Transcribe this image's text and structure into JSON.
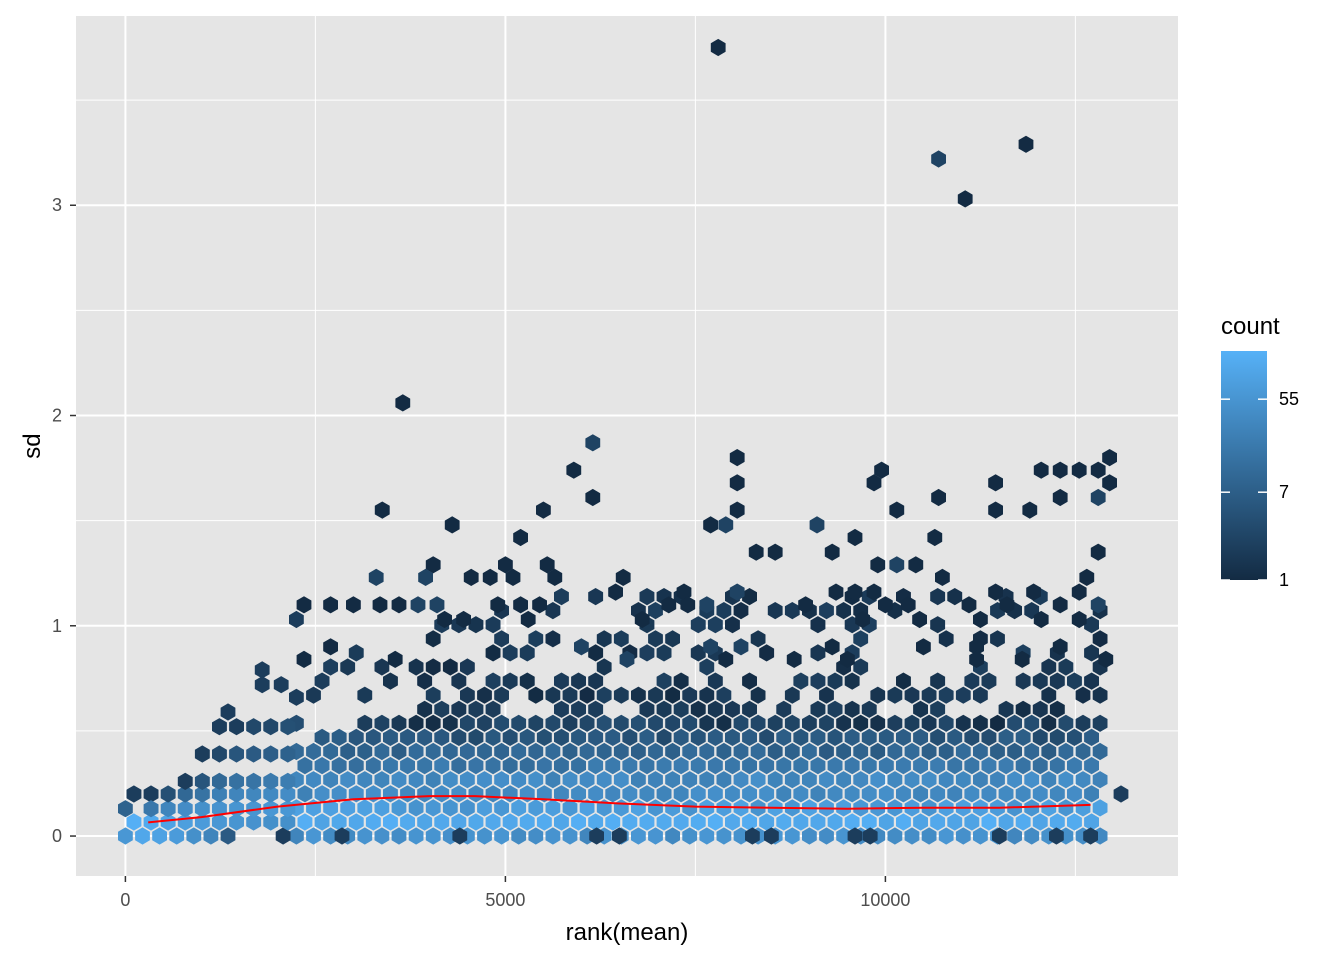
{
  "chart_data": {
    "type": "hexbin",
    "xlabel": "rank(mean)",
    "ylabel": "sd",
    "xlim": [
      -650,
      13850
    ],
    "ylim": [
      -0.19,
      3.9
    ],
    "x_ticks": [
      {
        "value": 0,
        "label": "0"
      },
      {
        "value": 5000,
        "label": "5000"
      },
      {
        "value": 10000,
        "label": "10000"
      }
    ],
    "y_ticks": [
      {
        "value": 0,
        "label": "0"
      },
      {
        "value": 1,
        "label": "1"
      },
      {
        "value": 2,
        "label": "2"
      },
      {
        "value": 3,
        "label": "3"
      }
    ],
    "grid": true,
    "background": "#e5e5e5",
    "gridline_color": "#ffffff",
    "legend": {
      "title": "count",
      "placement": "right",
      "scale": "log",
      "low_color": "#132b43",
      "high_color": "#56b1f7",
      "labels": [
        {
          "value": 1,
          "label": "1"
        },
        {
          "value": 7,
          "label": "7"
        },
        {
          "value": 55,
          "label": "55"
        }
      ],
      "max_count": 160
    },
    "hex_size": {
      "dx": 225,
      "dy": 0.1
    },
    "hexes": [
      [
        0,
        0,
        60
      ],
      [
        225,
        0,
        110
      ],
      [
        450,
        0,
        90
      ],
      [
        675,
        0,
        70
      ],
      [
        900,
        0,
        45
      ],
      [
        1125,
        0,
        30
      ],
      [
        1350,
        0,
        6
      ],
      [
        2075,
        0,
        2
      ],
      [
        2850,
        0,
        2
      ],
      [
        4400,
        0,
        2
      ],
      [
        6200,
        0,
        2
      ],
      [
        6500,
        0,
        2
      ],
      [
        8250,
        0,
        2
      ],
      [
        8500,
        0,
        2
      ],
      [
        9600,
        0,
        2
      ],
      [
        9800,
        0,
        2
      ],
      [
        11500,
        0,
        2
      ],
      [
        12250,
        0,
        2
      ],
      [
        12700,
        0,
        2
      ],
      [
        0,
        0.13,
        8
      ],
      [
        112,
        0.067,
        150
      ],
      [
        337,
        0.067,
        120
      ],
      [
        562,
        0.067,
        95
      ],
      [
        787,
        0.067,
        80
      ],
      [
        1012,
        0.067,
        70
      ],
      [
        1237,
        0.067,
        60
      ],
      [
        1462,
        0.067,
        55
      ],
      [
        1687,
        0.067,
        50
      ],
      [
        1912,
        0.067,
        45
      ],
      [
        2137,
        0.067,
        45
      ],
      [
        112,
        0.2,
        2
      ],
      [
        337,
        0.2,
        2
      ],
      [
        337,
        0.13,
        18
      ],
      [
        562,
        0.13,
        30
      ],
      [
        787,
        0.13,
        40
      ],
      [
        1012,
        0.13,
        45
      ],
      [
        1237,
        0.13,
        50
      ],
      [
        1462,
        0.13,
        55
      ],
      [
        1687,
        0.13,
        55
      ],
      [
        1912,
        0.13,
        60
      ],
      [
        2137,
        0.13,
        60
      ],
      [
        562,
        0.2,
        4
      ],
      [
        787,
        0.2,
        10
      ],
      [
        1012,
        0.2,
        15
      ],
      [
        1237,
        0.2,
        25
      ],
      [
        1462,
        0.2,
        30
      ],
      [
        1687,
        0.2,
        32
      ],
      [
        1912,
        0.2,
        36
      ],
      [
        2137,
        0.2,
        40
      ],
      [
        787,
        0.26,
        2
      ],
      [
        1012,
        0.26,
        5
      ],
      [
        1237,
        0.26,
        10
      ],
      [
        1462,
        0.26,
        14
      ],
      [
        1687,
        0.26,
        16
      ],
      [
        1912,
        0.26,
        20
      ],
      [
        2137,
        0.26,
        22
      ],
      [
        1012,
        0.39,
        2
      ],
      [
        1237,
        0.39,
        3
      ],
      [
        1462,
        0.39,
        5
      ],
      [
        1687,
        0.39,
        6
      ],
      [
        1912,
        0.39,
        7
      ],
      [
        2137,
        0.39,
        8
      ],
      [
        1237,
        0.52,
        2
      ],
      [
        1462,
        0.52,
        2
      ],
      [
        1687,
        0.52,
        3
      ],
      [
        1912,
        0.52,
        3
      ],
      [
        2137,
        0.52,
        4
      ],
      [
        1350,
        0.59,
        2
      ],
      [
        1800,
        0.72,
        2
      ],
      [
        2050,
        0.72,
        2
      ],
      [
        2250,
        0.66,
        2
      ],
      [
        2250,
        1.03,
        2
      ],
      [
        1800,
        0.79,
        2
      ]
    ]
  }
}
